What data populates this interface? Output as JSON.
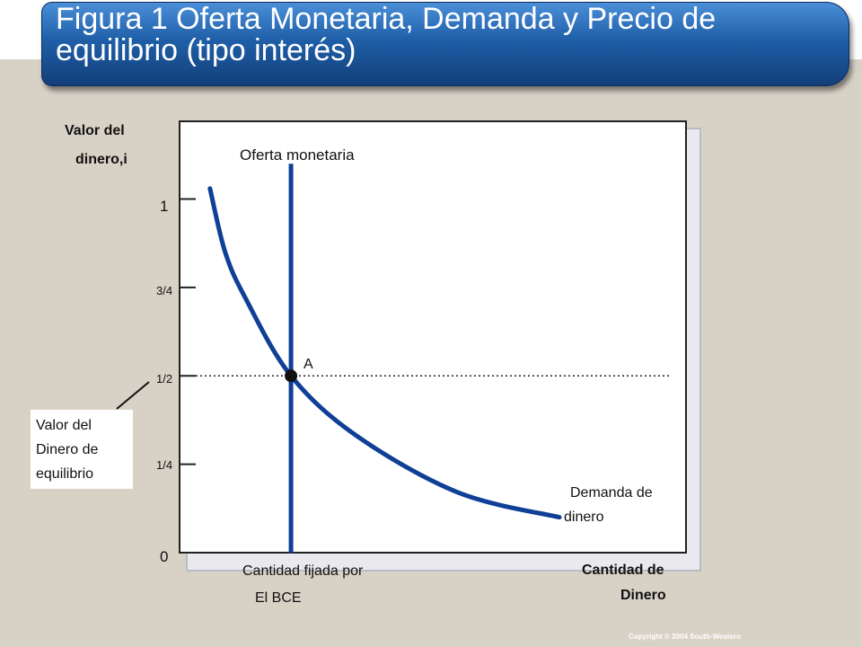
{
  "title": {
    "line1": "Figura 1 Oferta Monetaria, Demanda y Precio de",
    "line2": "equilibrio  (tipo interés)"
  },
  "colors": {
    "curve": "#0f3f96",
    "title_bar": "#1f5fa8"
  },
  "chart_data": {
    "type": "line",
    "ylabel_line1": "Valor del",
    "ylabel_line2": "dinero,i",
    "xlabel_line1": "Cantidad de",
    "xlabel_line2": "Dinero",
    "ylim": [
      0,
      1.22
    ],
    "y_ticks": [
      {
        "value": 1,
        "label": "1"
      },
      {
        "value": 0.75,
        "label": "3/4"
      },
      {
        "value": 0.5,
        "label": "1/2"
      },
      {
        "value": 0.25,
        "label": "1/4"
      },
      {
        "value": 0,
        "label": "0"
      }
    ],
    "series": [
      {
        "name": "Oferta monetaria",
        "kind": "vertical",
        "x": 0.22,
        "y_range": [
          0,
          1.1
        ]
      },
      {
        "name_line1": "Demanda de",
        "name_line2": "dinero",
        "kind": "curve",
        "x": [
          0.06,
          0.09,
          0.13,
          0.22,
          0.35,
          0.55,
          0.75
        ],
        "y": [
          1.03,
          0.85,
          0.72,
          0.5,
          0.33,
          0.17,
          0.1
        ]
      }
    ],
    "equilibrium": {
      "label": "A",
      "x": 0.22,
      "y": 0.5
    },
    "supply_note_line1": "Cantidad fijada por",
    "supply_note_line2": "El BCE",
    "equilibrium_note": [
      "Valor del",
      "Dinero de",
      "equilibrio"
    ]
  },
  "footer": {
    "copyright": "Copyright © 2004  South-Western"
  }
}
